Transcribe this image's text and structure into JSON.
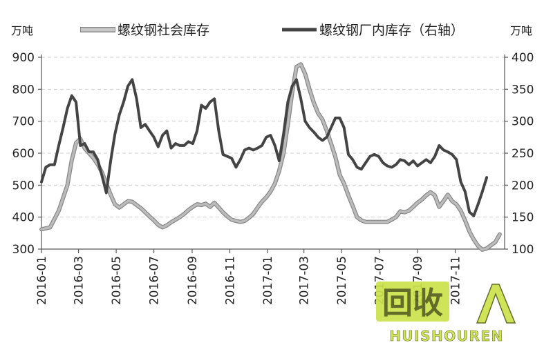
{
  "chart_data": {
    "type": "line",
    "title": "",
    "left_unit": "万吨",
    "right_unit": "万吨",
    "y_left": {
      "ticks": [
        300,
        400,
        500,
        600,
        700,
        800,
        900
      ],
      "range": [
        300,
        900
      ]
    },
    "y_right": {
      "ticks": [
        100,
        150,
        200,
        250,
        300,
        350,
        400
      ],
      "range": [
        100,
        400
      ]
    },
    "x_range": [
      "2016-01-01",
      "2018-01-20"
    ],
    "x_ticks": [
      "2016-01",
      "2016-03",
      "2016-05",
      "2016-07",
      "2016-09",
      "2016-11",
      "2017-01",
      "2017-03",
      "2017-05",
      "2017-07",
      "2017-09",
      "2017-11"
    ],
    "grid": true,
    "legend_position": "top",
    "series": [
      {
        "name": "螺纹钢社会库存",
        "axis": "left",
        "color": "#bbbbbb",
        "outline": "#888888",
        "points": [
          [
            "2016-01-01",
            362
          ],
          [
            "2016-01-15",
            368
          ],
          [
            "2016-01-29",
            420
          ],
          [
            "2016-02-12",
            500
          ],
          [
            "2016-02-19",
            578
          ],
          [
            "2016-02-26",
            632
          ],
          [
            "2016-03-04",
            645
          ],
          [
            "2016-03-11",
            615
          ],
          [
            "2016-03-18",
            600
          ],
          [
            "2016-03-25",
            585
          ],
          [
            "2016-04-01",
            565
          ],
          [
            "2016-04-08",
            540
          ],
          [
            "2016-04-15",
            505
          ],
          [
            "2016-04-22",
            470
          ],
          [
            "2016-04-29",
            440
          ],
          [
            "2016-05-06",
            430
          ],
          [
            "2016-05-13",
            440
          ],
          [
            "2016-05-20",
            450
          ],
          [
            "2016-05-27",
            448
          ],
          [
            "2016-06-03",
            438
          ],
          [
            "2016-06-10",
            428
          ],
          [
            "2016-06-17",
            415
          ],
          [
            "2016-06-24",
            402
          ],
          [
            "2016-07-01",
            390
          ],
          [
            "2016-07-08",
            376
          ],
          [
            "2016-07-15",
            368
          ],
          [
            "2016-07-22",
            374
          ],
          [
            "2016-07-29",
            384
          ],
          [
            "2016-08-05",
            392
          ],
          [
            "2016-08-12",
            400
          ],
          [
            "2016-08-19",
            410
          ],
          [
            "2016-08-26",
            422
          ],
          [
            "2016-09-02",
            432
          ],
          [
            "2016-09-09",
            440
          ],
          [
            "2016-09-16",
            438
          ],
          [
            "2016-09-23",
            442
          ],
          [
            "2016-09-30",
            432
          ],
          [
            "2016-10-07",
            445
          ],
          [
            "2016-10-14",
            430
          ],
          [
            "2016-10-21",
            415
          ],
          [
            "2016-10-28",
            402
          ],
          [
            "2016-11-04",
            392
          ],
          [
            "2016-11-11",
            388
          ],
          [
            "2016-11-18",
            385
          ],
          [
            "2016-11-25",
            388
          ],
          [
            "2016-12-02",
            398
          ],
          [
            "2016-12-09",
            410
          ],
          [
            "2016-12-16",
            430
          ],
          [
            "2016-12-23",
            448
          ],
          [
            "2016-12-30",
            462
          ],
          [
            "2017-01-06",
            480
          ],
          [
            "2017-01-13",
            505
          ],
          [
            "2017-01-20",
            545
          ],
          [
            "2017-01-27",
            600
          ],
          [
            "2017-02-03",
            690
          ],
          [
            "2017-02-10",
            790
          ],
          [
            "2017-02-17",
            870
          ],
          [
            "2017-02-24",
            878
          ],
          [
            "2017-03-03",
            848
          ],
          [
            "2017-03-10",
            800
          ],
          [
            "2017-03-17",
            758
          ],
          [
            "2017-03-24",
            725
          ],
          [
            "2017-03-31",
            705
          ],
          [
            "2017-04-07",
            670
          ],
          [
            "2017-04-14",
            630
          ],
          [
            "2017-04-21",
            588
          ],
          [
            "2017-04-28",
            532
          ],
          [
            "2017-05-05",
            505
          ],
          [
            "2017-05-12",
            468
          ],
          [
            "2017-05-19",
            435
          ],
          [
            "2017-05-26",
            400
          ],
          [
            "2017-06-02",
            390
          ],
          [
            "2017-06-09",
            385
          ],
          [
            "2017-06-16",
            385
          ],
          [
            "2017-06-23",
            385
          ],
          [
            "2017-06-30",
            385
          ],
          [
            "2017-07-07",
            385
          ],
          [
            "2017-07-14",
            385
          ],
          [
            "2017-07-21",
            392
          ],
          [
            "2017-07-28",
            400
          ],
          [
            "2017-08-04",
            418
          ],
          [
            "2017-08-11",
            415
          ],
          [
            "2017-08-18",
            420
          ],
          [
            "2017-08-25",
            432
          ],
          [
            "2017-09-01",
            445
          ],
          [
            "2017-09-08",
            455
          ],
          [
            "2017-09-15",
            468
          ],
          [
            "2017-09-22",
            478
          ],
          [
            "2017-09-29",
            468
          ],
          [
            "2017-10-06",
            432
          ],
          [
            "2017-10-13",
            450
          ],
          [
            "2017-10-20",
            470
          ],
          [
            "2017-10-27",
            450
          ],
          [
            "2017-11-03",
            440
          ],
          [
            "2017-11-10",
            420
          ],
          [
            "2017-11-17",
            390
          ],
          [
            "2017-11-24",
            355
          ],
          [
            "2017-12-01",
            330
          ],
          [
            "2017-12-08",
            310
          ],
          [
            "2017-12-15",
            298
          ],
          [
            "2017-12-22",
            302
          ],
          [
            "2017-12-29",
            312
          ],
          [
            "2018-01-05",
            322
          ],
          [
            "2018-01-12",
            346
          ]
        ]
      },
      {
        "name": "螺纹钢厂内库存（右轴）",
        "axis": "right",
        "color": "#444444",
        "points": [
          [
            "2016-01-01",
            205
          ],
          [
            "2016-01-08",
            228
          ],
          [
            "2016-01-15",
            232
          ],
          [
            "2016-01-22",
            232
          ],
          [
            "2016-01-29",
            262
          ],
          [
            "2016-02-05",
            290
          ],
          [
            "2016-02-12",
            320
          ],
          [
            "2016-02-19",
            340
          ],
          [
            "2016-02-26",
            330
          ],
          [
            "2016-03-04",
            262
          ],
          [
            "2016-03-11",
            265
          ],
          [
            "2016-03-18",
            252
          ],
          [
            "2016-03-25",
            252
          ],
          [
            "2016-04-01",
            240
          ],
          [
            "2016-04-08",
            215
          ],
          [
            "2016-04-15",
            188
          ],
          [
            "2016-04-22",
            238
          ],
          [
            "2016-04-29",
            280
          ],
          [
            "2016-05-06",
            310
          ],
          [
            "2016-05-13",
            330
          ],
          [
            "2016-05-20",
            355
          ],
          [
            "2016-05-27",
            365
          ],
          [
            "2016-06-03",
            335
          ],
          [
            "2016-06-10",
            290
          ],
          [
            "2016-06-17",
            295
          ],
          [
            "2016-06-24",
            285
          ],
          [
            "2016-07-01",
            275
          ],
          [
            "2016-07-08",
            260
          ],
          [
            "2016-07-15",
            278
          ],
          [
            "2016-07-22",
            285
          ],
          [
            "2016-07-29",
            258
          ],
          [
            "2016-08-05",
            265
          ],
          [
            "2016-08-12",
            262
          ],
          [
            "2016-08-19",
            262
          ],
          [
            "2016-08-26",
            268
          ],
          [
            "2016-09-02",
            265
          ],
          [
            "2016-09-09",
            285
          ],
          [
            "2016-09-16",
            325
          ],
          [
            "2016-09-23",
            320
          ],
          [
            "2016-09-30",
            330
          ],
          [
            "2016-10-07",
            335
          ],
          [
            "2016-10-14",
            285
          ],
          [
            "2016-10-21",
            248
          ],
          [
            "2016-10-28",
            245
          ],
          [
            "2016-11-04",
            242
          ],
          [
            "2016-11-11",
            228
          ],
          [
            "2016-11-18",
            240
          ],
          [
            "2016-11-25",
            255
          ],
          [
            "2016-12-02",
            258
          ],
          [
            "2016-12-09",
            255
          ],
          [
            "2016-12-16",
            258
          ],
          [
            "2016-12-23",
            262
          ],
          [
            "2016-12-30",
            275
          ],
          [
            "2017-01-06",
            278
          ],
          [
            "2017-01-13",
            262
          ],
          [
            "2017-01-20",
            238
          ],
          [
            "2017-01-27",
            280
          ],
          [
            "2017-02-03",
            330
          ],
          [
            "2017-02-10",
            355
          ],
          [
            "2017-02-17",
            365
          ],
          [
            "2017-02-24",
            335
          ],
          [
            "2017-03-03",
            300
          ],
          [
            "2017-03-10",
            290
          ],
          [
            "2017-03-17",
            283
          ],
          [
            "2017-03-24",
            275
          ],
          [
            "2017-03-31",
            270
          ],
          [
            "2017-04-07",
            275
          ],
          [
            "2017-04-14",
            290
          ],
          [
            "2017-04-21",
            305
          ],
          [
            "2017-04-28",
            305
          ],
          [
            "2017-05-05",
            290
          ],
          [
            "2017-05-12",
            248
          ],
          [
            "2017-05-19",
            240
          ],
          [
            "2017-05-26",
            228
          ],
          [
            "2017-06-02",
            225
          ],
          [
            "2017-06-09",
            235
          ],
          [
            "2017-06-16",
            245
          ],
          [
            "2017-06-23",
            248
          ],
          [
            "2017-06-30",
            245
          ],
          [
            "2017-07-07",
            235
          ],
          [
            "2017-07-14",
            230
          ],
          [
            "2017-07-21",
            228
          ],
          [
            "2017-07-28",
            232
          ],
          [
            "2017-08-04",
            240
          ],
          [
            "2017-08-11",
            238
          ],
          [
            "2017-08-18",
            232
          ],
          [
            "2017-08-25",
            238
          ],
          [
            "2017-09-01",
            230
          ],
          [
            "2017-09-08",
            235
          ],
          [
            "2017-09-15",
            240
          ],
          [
            "2017-09-22",
            235
          ],
          [
            "2017-09-29",
            245
          ],
          [
            "2017-10-06",
            262
          ],
          [
            "2017-10-13",
            255
          ],
          [
            "2017-10-20",
            252
          ],
          [
            "2017-10-27",
            248
          ],
          [
            "2017-11-03",
            240
          ],
          [
            "2017-11-10",
            205
          ],
          [
            "2017-11-17",
            190
          ],
          [
            "2017-11-24",
            158
          ],
          [
            "2017-12-01",
            152
          ],
          [
            "2017-12-08",
            170
          ],
          [
            "2017-12-15",
            190
          ],
          [
            "2017-12-22",
            212
          ]
        ]
      }
    ]
  },
  "watermark": {
    "logo_text": "回收",
    "brand_text": "HUISHOUREN",
    "primary_color": "#cde24c",
    "dark_color": "#565f16"
  }
}
